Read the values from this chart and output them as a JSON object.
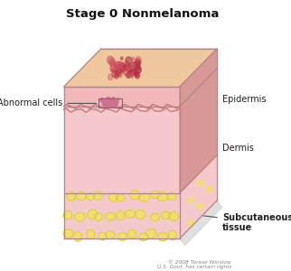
{
  "title": "Stage 0 Nonmelanoma",
  "title_fontsize": 9.5,
  "title_fontweight": "bold",
  "labels": {
    "abnormal_cells": "Abnormal cells",
    "epidermis": "Epidermis",
    "dermis": "Dermis",
    "subcutaneous": "Subcutaneous\ntissue"
  },
  "colors": {
    "fig_bg": "#ffffff",
    "skin_top": "#f0c8a0",
    "skin_top_mid": "#e8b890",
    "epidermis_front": "#f0b8b8",
    "epidermis_side": "#d89898",
    "dermis_front": "#f5c8cc",
    "dermis_side": "#dba8a8",
    "fat_front": "#f5c8cc",
    "fat_side": "#dba8a8",
    "subcutaneous_fat": "#f0e070",
    "fat_outline": "#d8c040",
    "wavy_line": "#c87880",
    "lesion_red1": "#b03040",
    "lesion_red2": "#d05060",
    "abnormal_dot": "#c87090",
    "outline": "#b08888",
    "label_line": "#555555",
    "shadow": "#cccccc",
    "label_color": "#222222"
  },
  "copyright": "© 2008 Terese Winslow\nU.S. Govt. has certain rights"
}
